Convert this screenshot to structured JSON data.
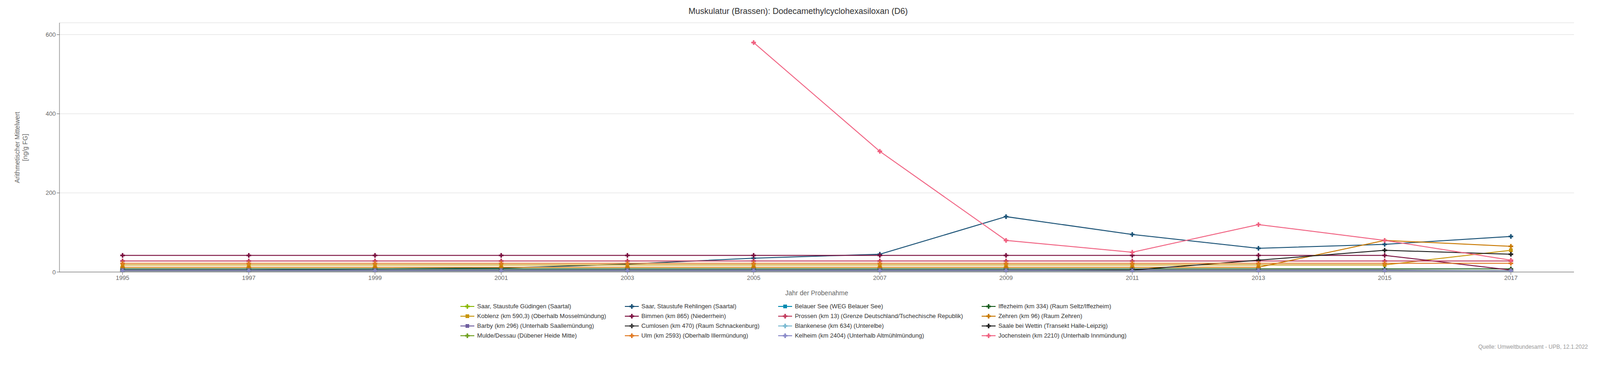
{
  "chart_data": {
    "type": "line",
    "title": "Muskulatur (Brassen): Dodecamethylcyclohexasiloxan (D6)",
    "xlabel": "Jahr der Probenahme",
    "ylabel": "Arithmetischer Mittelwert\n[ng/g FG]",
    "annotations": [
      "Quelle: Umweltbundesamt - UPB, 12.1.2022"
    ],
    "xlim": [
      1994,
      2018
    ],
    "ylim": [
      0,
      630
    ],
    "xticks": [
      1995,
      1997,
      1999,
      2001,
      2003,
      2005,
      2007,
      2009,
      2011,
      2013,
      2015,
      2017
    ],
    "yticks": [
      0,
      200,
      400,
      600
    ],
    "grid": true,
    "legend": "bottom",
    "series": [
      {
        "name": "Saar, Staustufe Güdingen (Saartal)",
        "color": "#8ab800",
        "marker": "plus",
        "x": [
          1995,
          1997,
          1999,
          2001,
          2003,
          2005,
          2007,
          2009,
          2011,
          2013,
          2015,
          2017
        ],
        "values": [
          3,
          3,
          3,
          3,
          3,
          3,
          3,
          3,
          3,
          3,
          3,
          3
        ]
      },
      {
        "name": "Saar, Staustufe Rehlingen (Saartal)",
        "color": "#1a5276",
        "marker": "plus",
        "x": [
          1995,
          1997,
          1999,
          2001,
          2003,
          2005,
          2007,
          2009,
          2011,
          2013,
          2015,
          2017
        ],
        "values": [
          5,
          5,
          8,
          10,
          20,
          35,
          45,
          140,
          95,
          60,
          70,
          90
        ]
      },
      {
        "name": "Belauer See (WEG Belauer See)",
        "color": "#008ab0",
        "marker": "square",
        "x": [
          1995,
          2001,
          2011,
          2017
        ],
        "values": [
          5,
          5,
          5,
          3
        ]
      },
      {
        "name": "Iffezheim (km 334) (Raum Seltz/Iffezheim)",
        "color": "#1a5e20",
        "marker": "plus",
        "x": [
          1995,
          1997,
          1999,
          2001,
          2003,
          2005,
          2007,
          2009,
          2011,
          2013,
          2015,
          2017
        ],
        "values": [
          8,
          8,
          8,
          8,
          8,
          8,
          8,
          8,
          8,
          8,
          8,
          8
        ]
      },
      {
        "name": "Koblenz (km 590,3) (Oberhalb Mosselmündung)",
        "color": "#c8960c",
        "marker": "square",
        "x": [
          1995,
          1997,
          1999,
          2001,
          2003,
          2005,
          2007,
          2009,
          2011,
          2013,
          2015,
          2017
        ],
        "values": [
          18,
          18,
          18,
          18,
          18,
          18,
          18,
          18,
          18,
          18,
          18,
          55
        ]
      },
      {
        "name": "Bimmen (km 865) (Niederrhein)",
        "color": "#7b1040",
        "marker": "plus",
        "x": [
          1995,
          1997,
          1999,
          2001,
          2003,
          2005,
          2007,
          2009,
          2011,
          2013,
          2015,
          2017
        ],
        "values": [
          42,
          42,
          42,
          42,
          42,
          42,
          42,
          42,
          42,
          42,
          42,
          5
        ]
      },
      {
        "name": "Prossen (km 13) (Grenze Deutschland/Tschechische Republik)",
        "color": "#c0385a",
        "marker": "plus",
        "x": [
          1995,
          1997,
          1999,
          2001,
          2003,
          2005,
          2007,
          2009,
          2011,
          2013,
          2015,
          2017
        ],
        "values": [
          28,
          28,
          28,
          28,
          28,
          28,
          28,
          28,
          28,
          28,
          28,
          28
        ]
      },
      {
        "name": "Zehren (km 96) (Raum Zehren)",
        "color": "#c87800",
        "marker": "plus",
        "x": [
          1995,
          1997,
          1999,
          2001,
          2003,
          2005,
          2007,
          2009,
          2011,
          2013,
          2015,
          2017
        ],
        "values": [
          12,
          12,
          12,
          12,
          12,
          12,
          12,
          12,
          12,
          12,
          80,
          65
        ]
      },
      {
        "name": "Barby (km 296) (Unterhalb Saallemündung)",
        "color": "#7060a0",
        "marker": "square",
        "x": [
          1995,
          1997,
          1999,
          2001,
          2003,
          2005,
          2007,
          2009,
          2011,
          2013,
          2015,
          2017
        ],
        "values": [
          5,
          5,
          5,
          5,
          5,
          5,
          5,
          5,
          5,
          5,
          5,
          3
        ]
      },
      {
        "name": "Cumlosen (km 470) (Raum Schnackenburg)",
        "color": "#383838",
        "marker": "plus",
        "x": [
          1995,
          1997,
          1999,
          2001,
          2003,
          2005,
          2007,
          2009,
          2011,
          2013,
          2015,
          2017
        ],
        "values": [
          3,
          3,
          3,
          3,
          3,
          3,
          3,
          3,
          3,
          3,
          3,
          3
        ]
      },
      {
        "name": "Blankenese (km 634) (Unterelbe)",
        "color": "#78b8d0",
        "marker": "plus",
        "x": [
          1995,
          1997,
          1999,
          2001,
          2003,
          2005,
          2007,
          2009,
          2011,
          2013,
          2015,
          2017
        ],
        "values": [
          3,
          3,
          3,
          3,
          3,
          3,
          3,
          3,
          3,
          3,
          3,
          3
        ]
      },
      {
        "name": "Saale bei Wettin (Transekt Halle-Leipzig)",
        "color": "#202020",
        "marker": "plus",
        "x": [
          1995,
          1997,
          1999,
          2001,
          2003,
          2005,
          2007,
          2009,
          2011,
          2013,
          2015,
          2017
        ],
        "values": [
          3,
          3,
          3,
          3,
          3,
          3,
          3,
          3,
          5,
          30,
          55,
          45
        ]
      },
      {
        "name": "Mulde/Dessau (Dübener Heide Mitte)",
        "color": "#70a020",
        "marker": "plus",
        "x": [
          1995,
          1997,
          1999,
          2001,
          2003,
          2005,
          2007,
          2009,
          2011,
          2013,
          2015,
          2017
        ],
        "values": [
          3,
          3,
          3,
          3,
          3,
          3,
          3,
          3,
          3,
          3,
          3,
          3
        ]
      },
      {
        "name": "Ulm (km 2593) (Oberhalb Illermündung)",
        "color": "#e07820",
        "marker": "plus",
        "x": [
          1995,
          1997,
          1999,
          2001,
          2003,
          2005,
          2007,
          2009,
          2011,
          2013,
          2015,
          2017
        ],
        "values": [
          22,
          22,
          22,
          22,
          22,
          22,
          22,
          22,
          22,
          22,
          22,
          22
        ]
      },
      {
        "name": "Kelheim (km 2404) (Unterhalb Altmühlmündung)",
        "color": "#8888c8",
        "marker": "plus",
        "x": [
          1995,
          1997,
          1999,
          2001,
          2003,
          2005,
          2007,
          2009,
          2011,
          2013,
          2015,
          2017
        ],
        "values": [
          3,
          3,
          3,
          3,
          3,
          3,
          3,
          3,
          3,
          3,
          3,
          3
        ]
      },
      {
        "name": "Jochenstein (km 2210) (Unterhalb Innmündung)",
        "color": "#f06080",
        "marker": "plus",
        "x": [
          2005,
          2007,
          2009,
          2011,
          2013,
          2015,
          2017
        ],
        "values": [
          580,
          305,
          80,
          50,
          120,
          80,
          30
        ]
      }
    ]
  }
}
